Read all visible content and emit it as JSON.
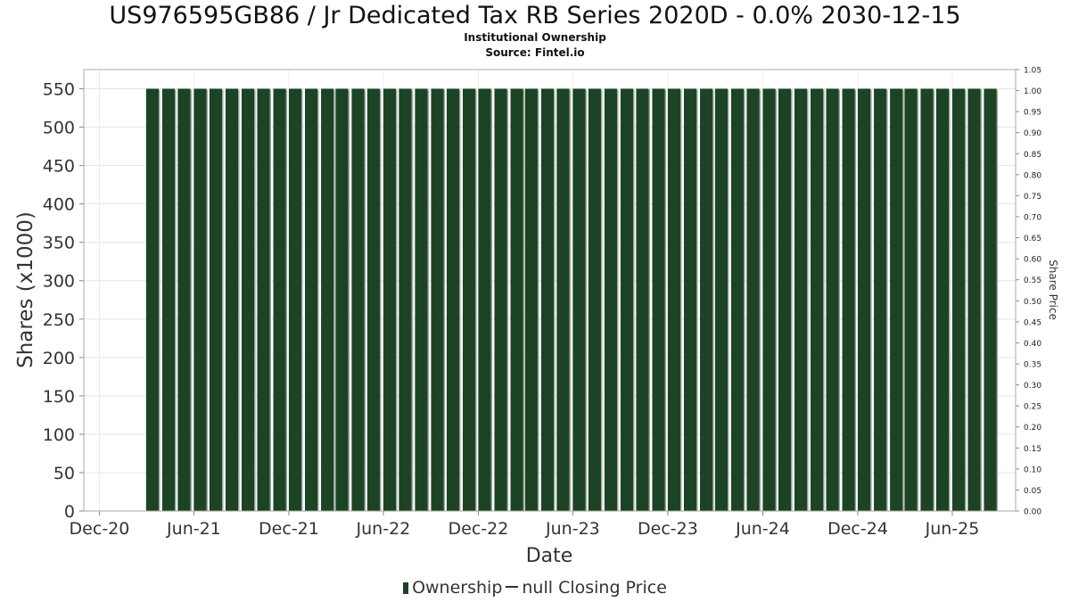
{
  "chart_data": {
    "type": "bar",
    "title": "US976595GB86 / Jr Dedicated Tax RB Series 2020D - 0.0% 2030-12-15",
    "subtitle": "Institutional Ownership",
    "source": "Source: Fintel.io",
    "xlabel": "Date",
    "ylabel": "Shares (x1000)",
    "y2label": "Share Price",
    "x_ticks": [
      "Dec-20",
      "Jun-21",
      "Dec-21",
      "Jun-22",
      "Dec-22",
      "Jun-23",
      "Dec-23",
      "Jun-24",
      "Dec-24",
      "Jun-25"
    ],
    "y_ticks": [
      "0",
      "50",
      "100",
      "150",
      "200",
      "250",
      "300",
      "350",
      "400",
      "450",
      "500",
      "550"
    ],
    "y2_ticks": [
      "0.00",
      "0.05",
      "0.10",
      "0.15",
      "0.20",
      "0.25",
      "0.30",
      "0.35",
      "0.40",
      "0.45",
      "0.50",
      "0.55",
      "0.60",
      "0.65",
      "0.70",
      "0.75",
      "0.80",
      "0.85",
      "0.90",
      "0.95",
      "1.00",
      "1.05"
    ],
    "ylim": [
      0,
      575
    ],
    "y2lim": [
      0,
      1.05
    ],
    "x_range": [
      "2020-11-01",
      "2025-10-01"
    ],
    "series": [
      {
        "name": "Ownership",
        "color": "#1c4424",
        "period": "monthly",
        "x_start": "2021-03",
        "x_end": "2025-08",
        "value": 550
      }
    ],
    "legend": {
      "position": "bottom",
      "items": [
        "Ownership",
        "null Closing Price"
      ]
    },
    "grid": true
  }
}
